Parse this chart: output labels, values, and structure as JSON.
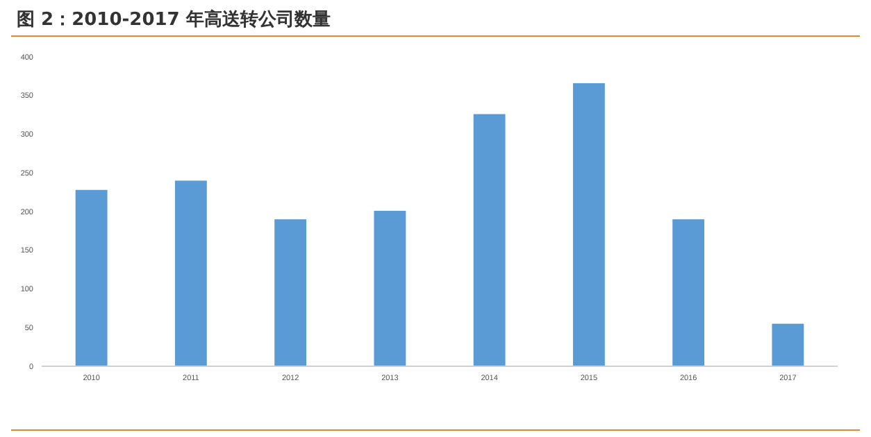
{
  "chart_data": {
    "type": "bar",
    "title": "图 2：2010-2017 年高送转公司数量",
    "categories": [
      "2010",
      "2011",
      "2012",
      "2013",
      "2014",
      "2015",
      "2016",
      "2017"
    ],
    "values": [
      228,
      240,
      190,
      201,
      326,
      366,
      190,
      55
    ],
    "color": "#5b9bd5",
    "ylim": [
      0,
      400
    ],
    "yticks": [
      0,
      50,
      100,
      150,
      200,
      250,
      300,
      350,
      400
    ],
    "grid": false
  }
}
